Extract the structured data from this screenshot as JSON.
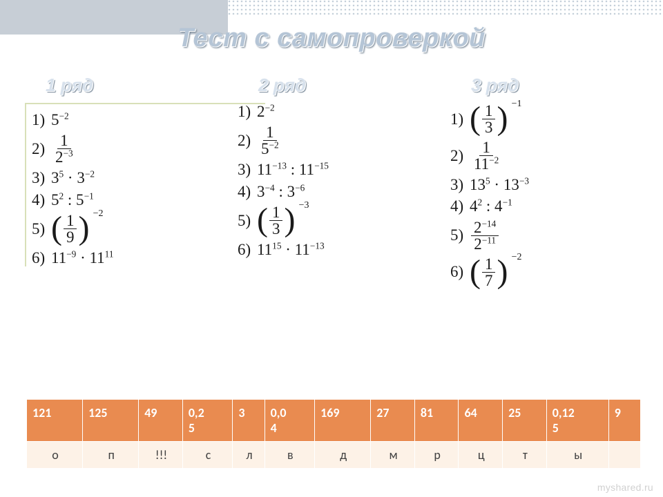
{
  "title": "Тест с самопроверкой",
  "columns": [
    {
      "heading": "1 ряд",
      "items": [
        {
          "n": "1)",
          "html": "5<sup>&#8722;2</sup>"
        },
        {
          "n": "2)",
          "html": "<span class='frac'><span class='fn'>1</span><span class='fd'>2<sup>&#8722;3</sup></span></span>"
        },
        {
          "n": "3)",
          "html": "3<sup>5</sup> &#183; 3<sup>&#8722;2</sup>"
        },
        {
          "n": "4)",
          "html": "5<sup>2</sup> : 5<sup>&#8722;1</sup>"
        },
        {
          "n": "5)",
          "html": "<span class='pgroup'><span class='bparen'>(</span><span class='frac'><span class='fn'>1</span><span class='fd'>9</span></span><span class='bparen'>)</span><span class='pexp'>&#8722;2</span></span>"
        },
        {
          "n": "6)",
          "html": "11<sup>&#8722;9</sup> &#183; 11<sup>11</sup>"
        }
      ]
    },
    {
      "heading": "2 ряд",
      "items": [
        {
          "n": "1)",
          "html": "2<sup>&#8722;2</sup>"
        },
        {
          "n": "2)",
          "html": "<span class='frac'><span class='fn'>1</span><span class='fd'>5<sup>&#8722;2</sup></span></span>"
        },
        {
          "n": "3)",
          "html": "11<sup>&#8722;13</sup> : 11<sup>&#8722;15</sup>"
        },
        {
          "n": "4)",
          "html": "3<sup>&#8722;4</sup> : 3<sup>&#8722;6</sup>"
        },
        {
          "n": "5)",
          "html": "<span class='pgroup'><span class='bparen'>(</span><span class='frac'><span class='fn'>1</span><span class='fd'>3</span></span><span class='bparen'>)</span><span class='pexp'>&#8722;3</span></span>"
        },
        {
          "n": "6)",
          "html": "11<sup>15</sup> &#183; 11<sup>&#8722;13</sup>"
        }
      ]
    },
    {
      "heading": "3 ряд",
      "items": [
        {
          "n": "1)",
          "html": "<span class='pgroup'><span class='bparen'>(</span><span class='frac'><span class='fn'>1</span><span class='fd'>3</span></span><span class='bparen'>)</span><span class='pexp'>&#8722;1</span></span>"
        },
        {
          "n": "2)",
          "html": "<span class='frac'><span class='fn'>1</span><span class='fd'>11<sup>&#8722;2</sup></span></span>"
        },
        {
          "n": "3)",
          "html": "13<sup>5</sup> &#183; 13<sup>&#8722;3</sup>"
        },
        {
          "n": "4)",
          "html": "4<sup>2</sup> : 4<sup>&#8722;1</sup>"
        },
        {
          "n": "5)",
          "html": "<span class='frac'><span class='fn'>2<sup>&#8722;14</sup></span><span class='fd'>2<sup>&#8722;11</sup></span></span>"
        },
        {
          "n": "6)",
          "html": "<span class='pgroup'><span class='bparen'>(</span><span class='frac'><span class='fn'>1</span><span class='fd'>7</span></span><span class='bparen'>)</span><span class='pexp'>&#8722;2</span></span>"
        }
      ]
    }
  ],
  "answer_table": {
    "nums_bg": "#e98b50",
    "nums_fg": "#ffffff",
    "lets_bg": "#fdf2e7",
    "lets_fg": "#404040",
    "numbers": [
      "121",
      "125",
      "49",
      "0,2 5",
      "3",
      "0,0 4",
      "169",
      "27",
      "81",
      "64",
      "25",
      "0,12 5",
      "9"
    ],
    "letters": [
      "о",
      "п",
      "!!!",
      "с",
      "л",
      "в",
      "д",
      "м",
      "р",
      "ц",
      "т",
      "ы",
      ""
    ]
  },
  "watermark": "myshared.ru"
}
